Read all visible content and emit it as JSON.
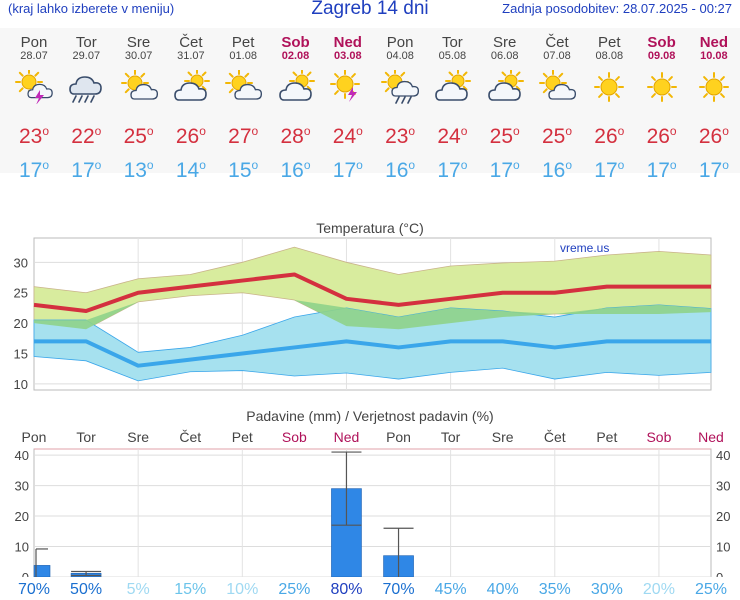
{
  "header": {
    "menu_hint": "(kraj lahko izberete v meniju)",
    "title": "Zagreb 14 dni",
    "last_update": "Zadnja posodobitev: 28.07.2025 - 00:27"
  },
  "days": [
    {
      "name": "Pon",
      "date": "28.07",
      "icon": "sun-cloud-thunder-icon",
      "tmax": "23",
      "tmin": "17",
      "weekend": false
    },
    {
      "name": "Tor",
      "date": "29.07",
      "icon": "cloud-rain-icon",
      "tmax": "22",
      "tmin": "17",
      "weekend": false
    },
    {
      "name": "Sre",
      "date": "30.07",
      "icon": "sun-cloud-icon",
      "tmax": "25",
      "tmin": "13",
      "weekend": false
    },
    {
      "name": "Čet",
      "date": "31.07",
      "icon": "cloud-sun-icon",
      "tmax": "26",
      "tmin": "14",
      "weekend": false
    },
    {
      "name": "Pet",
      "date": "01.08",
      "icon": "sun-cloud-icon",
      "tmax": "27",
      "tmin": "15",
      "weekend": false
    },
    {
      "name": "Sob",
      "date": "02.08",
      "icon": "cloud-sun-icon",
      "tmax": "28",
      "tmin": "16",
      "weekend": true
    },
    {
      "name": "Ned",
      "date": "03.08",
      "icon": "sun-thunder-icon",
      "tmax": "24",
      "tmin": "17",
      "weekend": true
    },
    {
      "name": "Pon",
      "date": "04.08",
      "icon": "sun-cloud-rain-icon",
      "tmax": "23",
      "tmin": "16",
      "weekend": false
    },
    {
      "name": "Tor",
      "date": "05.08",
      "icon": "cloud-sun-icon",
      "tmax": "24",
      "tmin": "17",
      "weekend": false
    },
    {
      "name": "Sre",
      "date": "06.08",
      "icon": "cloud-sun-icon",
      "tmax": "25",
      "tmin": "17",
      "weekend": false
    },
    {
      "name": "Čet",
      "date": "07.08",
      "icon": "sun-cloud-icon",
      "tmax": "25",
      "tmin": "16",
      "weekend": false
    },
    {
      "name": "Pet",
      "date": "08.08",
      "icon": "sun-icon",
      "tmax": "26",
      "tmin": "17",
      "weekend": false
    },
    {
      "name": "Sob",
      "date": "09.08",
      "icon": "sun-icon",
      "tmax": "26",
      "tmin": "17",
      "weekend": true
    },
    {
      "name": "Ned",
      "date": "10.08",
      "icon": "sun-icon",
      "tmax": "26",
      "tmin": "17",
      "weekend": true
    }
  ],
  "degree": "o",
  "chart_data": [
    {
      "type": "line",
      "title": "Temperatura (°C)",
      "watermark": "vreme.us",
      "categories": [
        "Pon",
        "Tor",
        "Sre",
        "Čet",
        "Pet",
        "Sob",
        "Ned",
        "Pon",
        "Tor",
        "Sre",
        "Čet",
        "Pet",
        "Sob",
        "Ned"
      ],
      "ylim": [
        9,
        34
      ],
      "yticks": [
        10,
        15,
        20,
        25,
        30
      ],
      "series": [
        {
          "values": [
            23,
            22,
            25,
            26,
            27,
            28,
            24,
            23,
            24,
            25,
            25,
            26,
            26,
            26
          ]
        },
        {
          "values": [
            17,
            17,
            13,
            14,
            15,
            16,
            17,
            16,
            17,
            17,
            16,
            17,
            17,
            17
          ]
        }
      ],
      "max_band_upper": [
        26,
        25,
        27.3,
        28,
        30,
        32.5,
        30,
        28,
        29.4,
        29.9,
        30.2,
        31.2,
        31.8,
        31.2
      ],
      "max_band_lower": [
        20,
        19,
        23.5,
        24.5,
        25,
        23.8,
        19.5,
        19,
        20,
        21,
        21.5,
        21.5,
        21.5,
        21.8
      ],
      "min_band_upper": [
        20.5,
        20.5,
        15.2,
        16,
        18,
        21,
        22.5,
        21,
        22.5,
        22,
        21,
        22.5,
        23,
        22.4
      ],
      "min_band_lower": [
        14.5,
        13.8,
        10.5,
        12,
        12.2,
        11.3,
        11.8,
        10.8,
        11.9,
        12.6,
        10.8,
        11.9,
        11.4,
        11.9
      ],
      "grid": true
    },
    {
      "type": "bar",
      "title": "Padavine (mm) / Verjetnost padavin (%)",
      "categories": [
        "Pon",
        "Tor",
        "Sre",
        "Čet",
        "Pet",
        "Sob",
        "Ned",
        "Pon",
        "Tor",
        "Sre",
        "Čet",
        "Pet",
        "Sob",
        "Ned"
      ],
      "weekend": [
        false,
        false,
        false,
        false,
        false,
        true,
        true,
        false,
        false,
        false,
        false,
        false,
        true,
        true
      ],
      "ylim": [
        0,
        42
      ],
      "yticks": [
        0,
        10,
        20,
        30,
        40
      ],
      "values": [
        3.8,
        1.2,
        0,
        0,
        0,
        0,
        29,
        7,
        0,
        0,
        0,
        0,
        0,
        0
      ],
      "error_low": [
        0,
        0.5,
        0,
        0,
        0,
        0,
        17,
        0,
        0,
        0,
        0,
        0,
        0,
        0
      ],
      "error_high": [
        9.2,
        1.8,
        0,
        0,
        0,
        0,
        41,
        16,
        0,
        0,
        0,
        0,
        0,
        0
      ],
      "probability": [
        "70%",
        "50%",
        "5%",
        "15%",
        "10%",
        "25%",
        "80%",
        "70%",
        "45%",
        "40%",
        "35%",
        "30%",
        "20%",
        "25%"
      ],
      "probability_colors": [
        "#1a6fd0",
        "#1a6fd0",
        "#9fd9f2",
        "#6cc4ea",
        "#9fd9f2",
        "#4aa8e6",
        "#1f3fbf",
        "#1a6fd0",
        "#4aa8e6",
        "#4aa8e6",
        "#4aa8e6",
        "#4aa8e6",
        "#9fd9f2",
        "#4aa8e6"
      ],
      "grid": true
    }
  ],
  "colors": {
    "max_line": "#d4303f",
    "min_line": "#3aa6ea",
    "max_band": "#d8ec9e",
    "overlap": "#8fd38a",
    "min_band": "#a6e1ef",
    "bar": "#2f87e6",
    "weekend": "#b0125a"
  }
}
